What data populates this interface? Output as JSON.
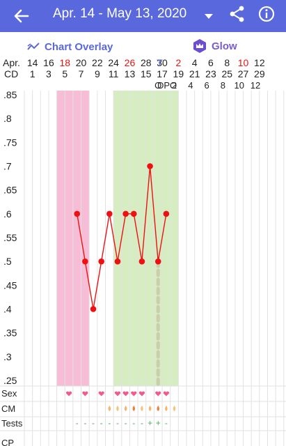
{
  "header": {
    "title": "Apr. 14 - May 13, 2020"
  },
  "toolbar": {
    "overlay_label": "Chart Overlay",
    "glow_label": "Glow"
  },
  "icons": {
    "back": "arrow-left-icon",
    "dropdown": "caret-down-icon",
    "share": "share-icon",
    "info": "info-icon",
    "overlay": "chart-line-icon",
    "glow": "crown-icon"
  },
  "colors": {
    "brand": "#5a68dd",
    "period": "#f7bdd6",
    "fertile": "#d6ecc1",
    "temperature": "#ee1111",
    "heart": "#f05a8c",
    "red_label": "#ee1111"
  },
  "labels": {
    "month_label": "Apr.",
    "cd_label": "CD",
    "dpo_label": "DPO",
    "sex_label": "Sex",
    "cm_label": "CM",
    "tests_label": "Tests",
    "cp_label": "CP"
  },
  "date_row": [
    {
      "text": "14",
      "red": false
    },
    {
      "text": "16",
      "red": false
    },
    {
      "text": "18",
      "red": true
    },
    {
      "text": "20",
      "red": false
    },
    {
      "text": "22",
      "red": false
    },
    {
      "text": "24",
      "red": false
    },
    {
      "text": "26",
      "red": true
    },
    {
      "text": "28",
      "red": false
    },
    {
      "text": "30",
      "red": false
    },
    {
      "text": "2",
      "red": true
    },
    {
      "text": "4",
      "red": false
    },
    {
      "text": "6",
      "red": false
    },
    {
      "text": "8",
      "red": false
    },
    {
      "text": "10",
      "red": true
    },
    {
      "text": "12",
      "red": false
    }
  ],
  "today_marker": "T",
  "cd_row": [
    "1",
    "3",
    "5",
    "7",
    "9",
    "11",
    "13",
    "15",
    "17",
    "19",
    "21",
    "23",
    "25",
    "27",
    "29"
  ],
  "dpo_row": [
    "O",
    "2",
    "4",
    "6",
    "8",
    "10",
    "12"
  ],
  "chart_data": {
    "type": "line",
    "series": [
      {
        "values_by_day_index": [
          {
            "day": 6,
            "y": 0.6
          },
          {
            "day": 7,
            "y": 0.5
          },
          {
            "day": 8,
            "y": 0.4
          },
          {
            "day": 9,
            "y": 0.5
          },
          {
            "day": 10,
            "y": 0.6
          },
          {
            "day": 11,
            "y": 0.5
          },
          {
            "day": 12,
            "y": 0.6
          },
          {
            "day": 13,
            "y": 0.6
          },
          {
            "day": 14,
            "y": 0.5
          },
          {
            "day": 15,
            "y": 0.7
          },
          {
            "day": 16,
            "y": 0.5
          },
          {
            "day": 17,
            "y": 0.6
          }
        ]
      }
    ],
    "y_ticks": [
      ".85",
      ".8",
      ".75",
      ".7",
      ".65",
      ".6",
      ".55",
      ".5",
      ".45",
      ".4",
      ".35",
      ".3",
      ".25"
    ],
    "ylim": [
      0.25,
      0.85
    ],
    "period_days": [
      4,
      5,
      6,
      7
    ],
    "fertile_days": [
      11,
      12,
      13,
      14,
      15,
      16,
      17,
      18
    ],
    "ovulation_day": 16,
    "sex_days": [
      5,
      7,
      9,
      11,
      12,
      13,
      14,
      16,
      17
    ],
    "cm_days": [
      10,
      11,
      12,
      13,
      14,
      15,
      16,
      17,
      18
    ],
    "tests": [
      {
        "day": 6,
        "mark": "-"
      },
      {
        "day": 7,
        "mark": "-"
      },
      {
        "day": 8,
        "mark": "-"
      },
      {
        "day": 9,
        "mark": "-"
      },
      {
        "day": 10,
        "mark": "-"
      },
      {
        "day": 11,
        "mark": "-"
      },
      {
        "day": 12,
        "mark": "-"
      },
      {
        "day": 13,
        "mark": "-"
      },
      {
        "day": 14,
        "mark": "-"
      },
      {
        "day": 15,
        "mark": "+"
      },
      {
        "day": 16,
        "mark": "+"
      },
      {
        "day": 17,
        "mark": "-"
      }
    ]
  }
}
